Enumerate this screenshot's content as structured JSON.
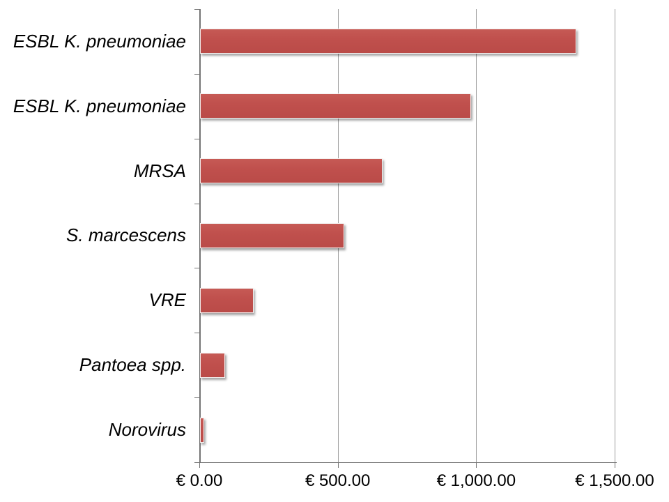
{
  "chart_data": {
    "type": "bar",
    "orientation": "horizontal",
    "title": "",
    "xlabel": "",
    "ylabel": "",
    "categories": [
      "ESBL K. pneumoniae",
      "ESBL K. pneumoniae",
      "MRSA",
      "S. marcescens",
      "VRE",
      "Pantoea spp.",
      "Norovirus"
    ],
    "values": [
      1360,
      980,
      660,
      520,
      195,
      90,
      15
    ],
    "value_unit": "EUR",
    "x_tick_labels": [
      "€ 0.00",
      "€ 500.00",
      "€ 1,000.00",
      "€ 1,500.00"
    ],
    "x_tick_values": [
      0,
      500,
      1000,
      1500
    ],
    "xlim": [
      0,
      1500
    ],
    "grid": "vertical-gridlines-at-ticks",
    "legend_position": "none",
    "category_label_style": "italic"
  },
  "style": {
    "bar_fill": "#c0504d",
    "bar_border": "#f4f1f0",
    "axis_color": "#737373",
    "gridline_color": "#9d9d9d",
    "text_color": "#000000",
    "background": "#ffffff"
  }
}
